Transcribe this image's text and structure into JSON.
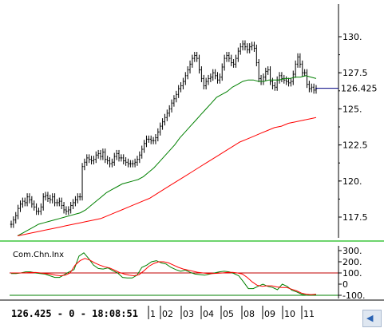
{
  "chart_data": [
    {
      "type": "line",
      "subtype": "ohlc-bars",
      "ylim": [
        116.0,
        131.5
      ],
      "price_axis_ticks": [
        "130.",
        "127.5",
        "125.",
        "122.5",
        "120.",
        "117.5"
      ],
      "price_axis_values": [
        130,
        127.5,
        125,
        122.5,
        120,
        117.5
      ],
      "current_price_label": "126.425",
      "current_price": 126.425,
      "series": [
        {
          "type": "ohlc",
          "color": "#000000",
          "close": [
            117.0,
            117.3,
            117.6,
            118.1,
            118.4,
            118.6,
            118.5,
            118.9,
            118.7,
            118.4,
            118.2,
            117.9,
            117.9,
            118.2,
            118.9,
            119.0,
            118.8,
            118.7,
            118.9,
            118.5,
            118.5,
            118.6,
            118.3,
            118.0,
            117.9,
            118.0,
            118.3,
            118.5,
            118.7,
            118.9,
            118.9,
            121.0,
            121.3,
            121.6,
            121.5,
            121.4,
            121.5,
            121.8,
            121.9,
            121.7,
            122.0,
            121.5,
            121.4,
            121.2,
            121.3,
            121.7,
            121.9,
            121.6,
            121.6,
            121.4,
            121.3,
            121.2,
            121.2,
            121.2,
            121.3,
            121.5,
            121.8,
            122.2,
            122.6,
            122.9,
            122.9,
            122.8,
            122.8,
            123.0,
            123.4,
            123.8,
            124.1,
            124.4,
            124.7,
            125.0,
            125.4,
            125.7,
            126.0,
            126.4,
            126.6,
            126.9,
            127.3,
            127.7,
            128.1,
            128.5,
            128.7,
            128.5,
            127.7,
            127.1,
            126.6,
            126.9,
            127.1,
            127.2,
            127.5,
            127.3,
            127.0,
            127.2,
            127.9,
            128.5,
            128.7,
            128.5,
            128.2,
            128.1,
            128.5,
            129.0,
            129.3,
            129.5,
            129.3,
            129.1,
            129.3,
            129.4,
            129.2,
            128.2,
            127.1,
            126.9,
            127.2,
            127.6,
            127.7,
            126.9,
            126.6,
            126.5,
            127.0,
            127.3,
            127.1,
            127.0,
            126.9,
            126.8,
            126.9,
            127.4,
            128.1,
            128.6,
            128.1,
            127.5,
            127.5,
            126.7,
            126.4,
            126.5,
            126.3,
            126.4
          ]
        },
        {
          "type": "line",
          "color": "#008000",
          "values": [
            116.2,
            116.4,
            116.6,
            116.8,
            117.0,
            117.1,
            117.2,
            117.3,
            117.4,
            117.5,
            117.6,
            117.7,
            117.8,
            118.0,
            118.3,
            118.6,
            118.9,
            119.2,
            119.4,
            119.6,
            119.8,
            119.9,
            120.0,
            120.1,
            120.3,
            120.6,
            120.9,
            121.3,
            121.7,
            122.1,
            122.5,
            123.0,
            123.4,
            123.8,
            124.2,
            124.6,
            125.0,
            125.4,
            125.8,
            126.0,
            126.2,
            126.5,
            126.7,
            126.9,
            127.0,
            127.0,
            126.9,
            126.9,
            127.0,
            127.0,
            127.0,
            127.1,
            127.1,
            127.2,
            127.2,
            127.3,
            127.2,
            127.1
          ]
        },
        {
          "type": "line",
          "color": "#ff0000",
          "values": [
            116.2,
            116.3,
            116.4,
            116.5,
            116.6,
            116.7,
            116.8,
            116.9,
            117.0,
            117.1,
            117.2,
            117.3,
            117.4,
            117.6,
            117.8,
            118.0,
            118.2,
            118.4,
            118.6,
            118.8,
            119.1,
            119.4,
            119.7,
            120.0,
            120.3,
            120.6,
            120.9,
            121.2,
            121.5,
            121.8,
            122.1,
            122.4,
            122.7,
            122.9,
            123.1,
            123.3,
            123.5,
            123.7,
            123.8,
            124.0,
            124.1,
            124.2,
            124.3,
            124.4
          ]
        }
      ]
    },
    {
      "type": "line",
      "title": "Com.Chn.Inx",
      "ylim": [
        -130,
        330
      ],
      "axis_ticks": [
        "300.",
        "200.",
        "100.",
        "0",
        "-100."
      ],
      "axis_values": [
        300,
        200,
        100,
        0,
        -100
      ],
      "reference_lines": [
        100,
        -100
      ],
      "series": [
        {
          "type": "line",
          "color": "#008000",
          "values": [
            95,
            95,
            100,
            110,
            110,
            100,
            95,
            90,
            75,
            60,
            60,
            85,
            110,
            130,
            250,
            280,
            230,
            170,
            140,
            135,
            145,
            120,
            100,
            60,
            55,
            55,
            80,
            150,
            170,
            200,
            210,
            190,
            180,
            150,
            130,
            115,
            125,
            105,
            90,
            85,
            80,
            90,
            100,
            110,
            115,
            110,
            95,
            75,
            20,
            -40,
            -40,
            -20,
            0,
            -20,
            -30,
            -50,
            0,
            -20,
            -55,
            -70,
            -90,
            -100,
            -95,
            -95
          ]
        },
        {
          "type": "line",
          "color": "#ff0000",
          "values": [
            100,
            100,
            100,
            102,
            104,
            104,
            100,
            95,
            90,
            80,
            75,
            80,
            100,
            170,
            210,
            230,
            215,
            190,
            170,
            155,
            145,
            125,
            105,
            90,
            80,
            75,
            85,
            120,
            160,
            185,
            200,
            200,
            190,
            170,
            150,
            135,
            125,
            115,
            105,
            100,
            95,
            95,
            97,
            100,
            105,
            105,
            100,
            90,
            60,
            20,
            -10,
            -20,
            -15,
            -15,
            -25,
            -30,
            -30,
            -45,
            -60,
            -80,
            -90,
            -95,
            -90
          ]
        }
      ]
    }
  ],
  "status_bar": {
    "readout": "126.425 - 0 - 18:08:51",
    "months": [
      "1",
      "02",
      "03",
      "04",
      "05",
      "08",
      "09",
      "10",
      "11"
    ]
  },
  "colors": {
    "price_line": "#000080",
    "grid_line": "#008000",
    "panel_border": "#3ec63e",
    "ref_line": "#c00000"
  }
}
